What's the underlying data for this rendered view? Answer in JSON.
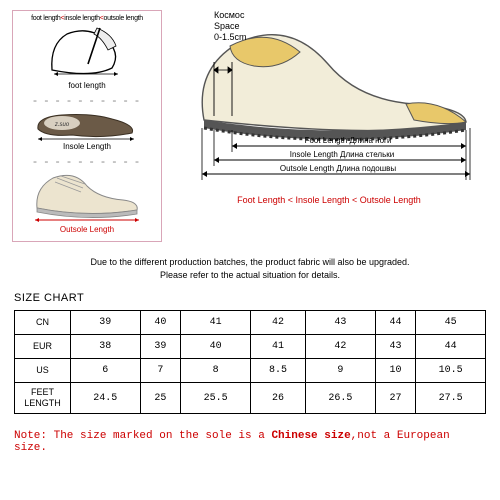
{
  "diagram": {
    "left_panel": {
      "border_color": "#d9a6b8",
      "header_rule": {
        "parts": [
          "foot length",
          "<",
          "insole length",
          "<",
          "outsole length"
        ],
        "highlight_indices": [
          1,
          3
        ]
      },
      "foot_label": "foot length",
      "insole_label": "Insole Length",
      "outsole_label": "Outsole Length",
      "label_colors": {
        "foot": "#000000",
        "insole": "#000000",
        "outsole": "#c00000"
      },
      "shoe_colors": {
        "upper": "#e8e2d2",
        "sole": "#888888",
        "laces": "#999999",
        "brand": "z.suo"
      }
    },
    "right_panel": {
      "space_label_ru": "Космос",
      "space_label_en": "Space",
      "space_value": "0-1.5cm",
      "foot_length": {
        "en": "Foot Length",
        "ru": "Длина ноги"
      },
      "insole_length": {
        "en": "Insole Length",
        "ru": "Длина стельки"
      },
      "outsole_length": {
        "en": "Outsole Length",
        "ru": "Длина подошвы"
      },
      "bottom_rule": "Foot Length < Insole Length < Outsole Length",
      "shoe_colors": {
        "upper": "#f2edd9",
        "accent": "#e8c86a",
        "sole": "#555555"
      }
    }
  },
  "midtext": {
    "line1": "Due to the different production batches, the product fabric will also be upgraded.",
    "line2": "Please refer to the actual situation for details."
  },
  "size_chart": {
    "title": "SIZE CHART",
    "rows": [
      {
        "label": "CN",
        "values": [
          "39",
          "40",
          "41",
          "42",
          "43",
          "44",
          "45"
        ]
      },
      {
        "label": "EUR",
        "values": [
          "38",
          "39",
          "40",
          "41",
          "42",
          "43",
          "44"
        ]
      },
      {
        "label": "US",
        "values": [
          "6",
          "7",
          "8",
          "8.5",
          "9",
          "10",
          "10.5"
        ]
      },
      {
        "label": "FEET LENGTH",
        "values": [
          "24.5",
          "25",
          "25.5",
          "26",
          "26.5",
          "27",
          "27.5"
        ]
      }
    ]
  },
  "note": {
    "prefix": "Note: The size marked on the sole is a ",
    "highlight": "Chinese size",
    "suffix": ",not a European size."
  }
}
